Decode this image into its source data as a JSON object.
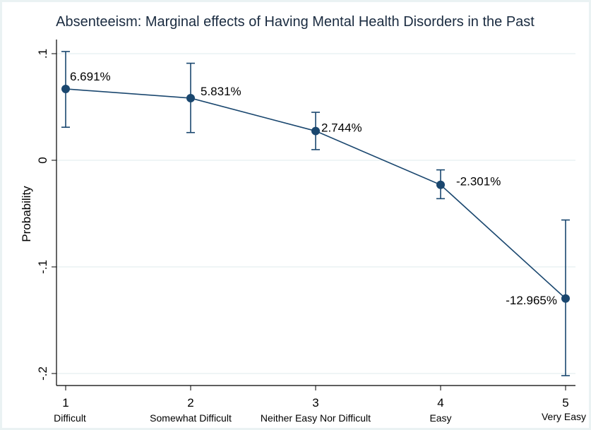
{
  "chart_data": {
    "type": "line",
    "title": "Absenteeism: Marginal effects of Having Mental Health Disorders in the Past",
    "xlabel": "",
    "ylabel": "Probability",
    "x": [
      1,
      2,
      3,
      4,
      5
    ],
    "x_tick_labels": [
      "1",
      "2",
      "3",
      "4",
      "5"
    ],
    "categories": [
      "Difficult",
      "Somewhat Difficult",
      "Neither Easy Nor Difficult",
      "Easy",
      "Very Easy"
    ],
    "y_ticks": [
      0.1,
      0,
      -0.1,
      -0.2
    ],
    "y_tick_labels": [
      ".1",
      "0",
      "-.1",
      "-.2"
    ],
    "ylim": [
      -0.205,
      0.103
    ],
    "xlim": [
      0.9,
      5.1
    ],
    "grid": true,
    "series": [
      {
        "name": "Marginal effect",
        "values": [
          0.06691,
          0.05831,
          0.02744,
          -0.02301,
          -0.12965
        ],
        "ci_lower": [
          0.031,
          0.026,
          0.01,
          -0.036,
          -0.202
        ],
        "ci_upper": [
          0.102,
          0.091,
          0.045,
          -0.009,
          -0.056
        ],
        "data_labels": [
          "6.691%",
          "5.831%",
          "2.744%",
          "-2.301%",
          "-12.965%"
        ],
        "color": "#1a476f"
      }
    ]
  }
}
